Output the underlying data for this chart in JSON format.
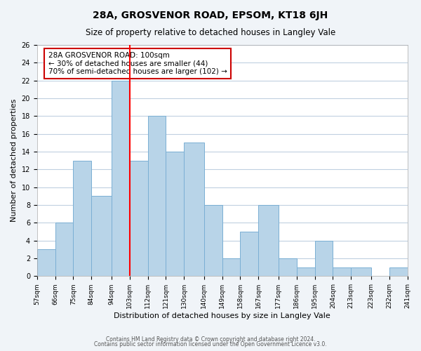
{
  "title": "28A, GROSVENOR ROAD, EPSOM, KT18 6JH",
  "subtitle": "Size of property relative to detached houses in Langley Vale",
  "xlabel": "Distribution of detached houses by size in Langley Vale",
  "ylabel": "Number of detached properties",
  "bin_labels": [
    "57sqm",
    "66sqm",
    "75sqm",
    "84sqm",
    "94sqm",
    "103sqm",
    "112sqm",
    "121sqm",
    "130sqm",
    "140sqm",
    "149sqm",
    "158sqm",
    "167sqm",
    "177sqm",
    "186sqm",
    "195sqm",
    "204sqm",
    "213sqm",
    "223sqm",
    "232sqm",
    "241sqm"
  ],
  "bin_edges": [
    57,
    66,
    75,
    84,
    94,
    103,
    112,
    121,
    130,
    140,
    149,
    158,
    167,
    177,
    186,
    195,
    204,
    213,
    223,
    232,
    241
  ],
  "bar_heights": [
    3,
    6,
    13,
    9,
    22,
    13,
    18,
    14,
    15,
    8,
    2,
    5,
    8,
    2,
    1,
    4,
    1,
    1,
    0,
    1
  ],
  "bar_color": "#b8d4e8",
  "bar_edgecolor": "#7bafd4",
  "red_line_x": 103,
  "ylim": [
    0,
    26
  ],
  "yticks": [
    0,
    2,
    4,
    6,
    8,
    10,
    12,
    14,
    16,
    18,
    20,
    22,
    24,
    26
  ],
  "annotation_text": "28A GROSVENOR ROAD: 100sqm\n← 30% of detached houses are smaller (44)\n70% of semi-detached houses are larger (102) →",
  "annotation_box_color": "#ffffff",
  "annotation_box_edgecolor": "#cc0000",
  "footer_line1": "Contains HM Land Registry data © Crown copyright and database right 2024.",
  "footer_line2": "Contains public sector information licensed under the Open Government Licence v3.0.",
  "background_color": "#f0f4f8",
  "plot_bg_color": "#ffffff",
  "grid_color": "#c0d0e0"
}
